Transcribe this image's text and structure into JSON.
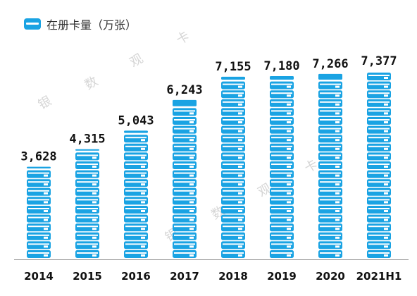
{
  "legend": {
    "label": "在册卡量（万张）"
  },
  "watermarks": [
    "银",
    "数",
    "观",
    "卡",
    "银",
    "数",
    "观",
    "卡"
  ],
  "chart_data": {
    "type": "bar",
    "categories": [
      "2014",
      "2015",
      "2016",
      "2017",
      "2018",
      "2019",
      "2020",
      "2021H1"
    ],
    "values": [
      3628,
      4315,
      5043,
      6243,
      7155,
      7180,
      7266,
      7377
    ],
    "value_labels": [
      "3,628",
      "4,315",
      "5,043",
      "6,243",
      "7,155",
      "7,180",
      "7,266",
      "7,377"
    ],
    "series": [
      {
        "name": "在册卡量（万张）",
        "values": [
          3628,
          4315,
          5043,
          6243,
          7155,
          7180,
          7266,
          7377
        ]
      }
    ],
    "ylim": [
      0,
      7400
    ],
    "color": "#1aa3e3",
    "grid": false
  }
}
